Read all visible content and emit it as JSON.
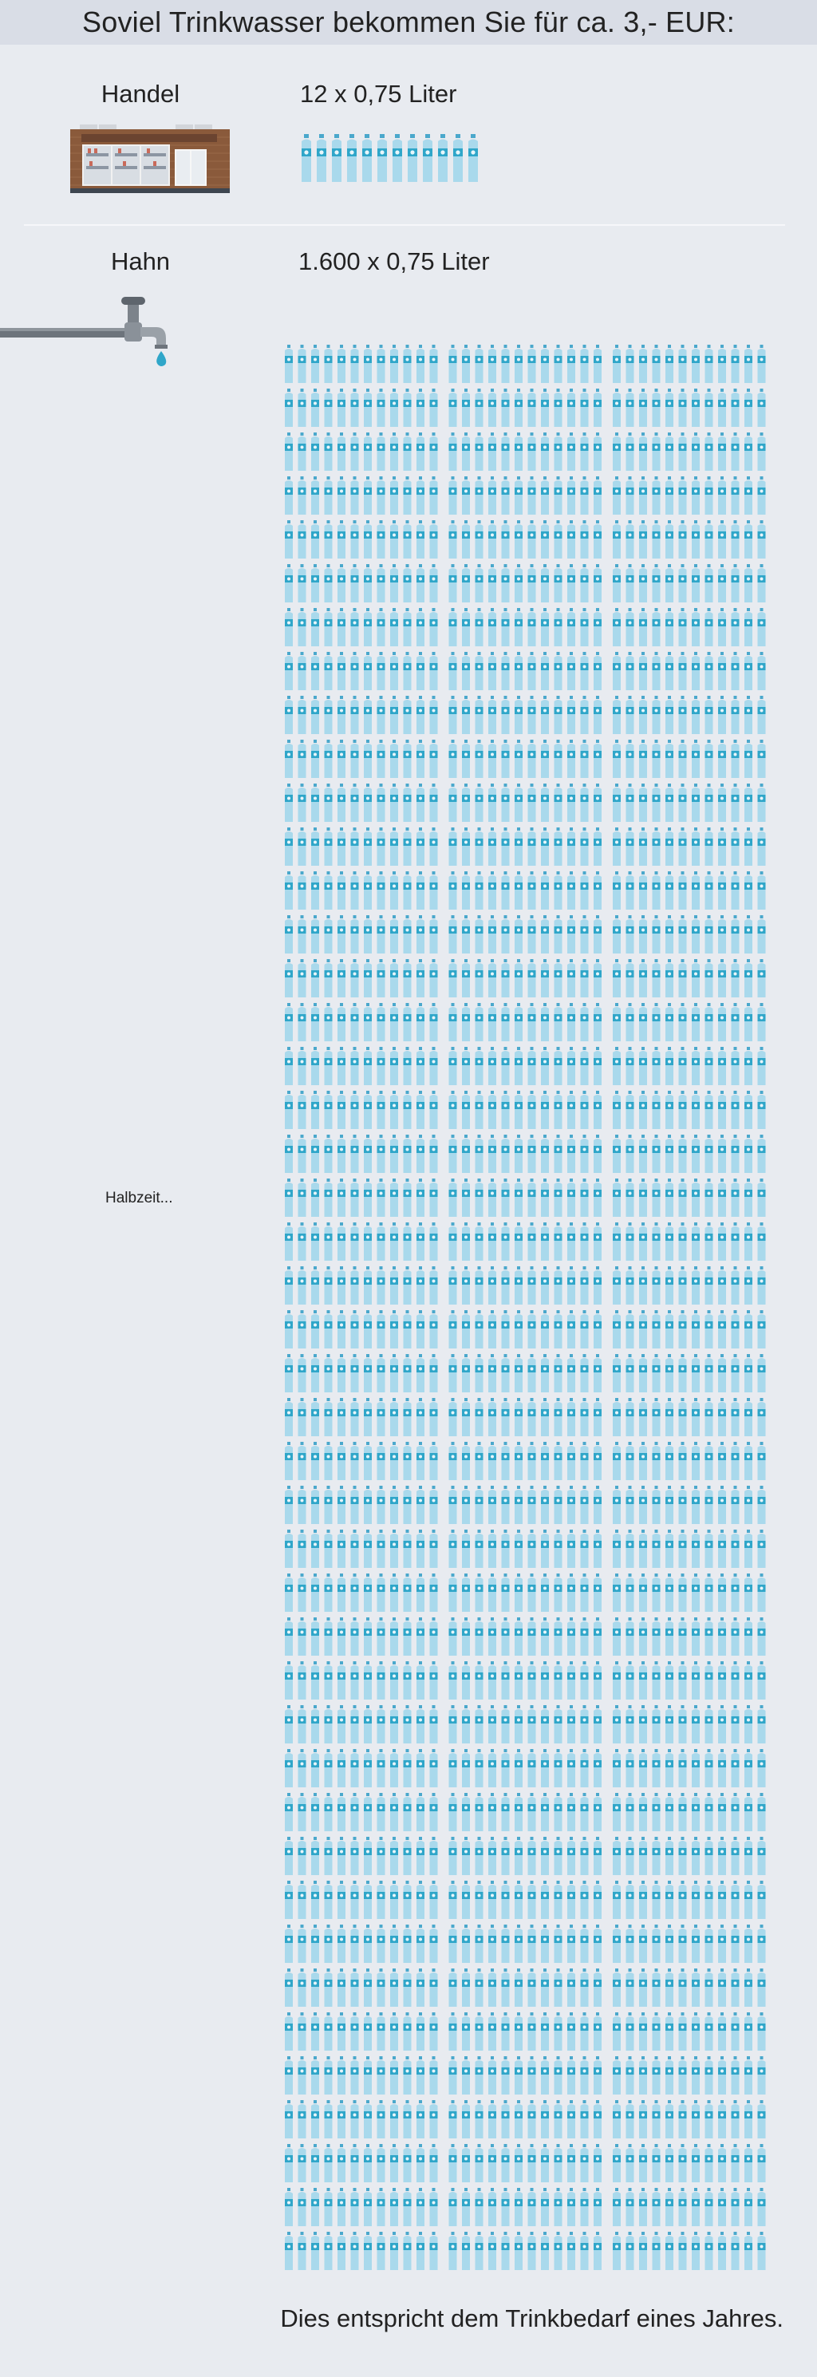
{
  "header": {
    "title": "Soviel Trinkwasser bekommen Sie für ca. 3,- EUR:"
  },
  "handel": {
    "label": "Handel",
    "quantity": "12 x 0,75 Liter",
    "bottle_count": 12,
    "icon": "store-icon"
  },
  "hahn": {
    "label": "Hahn",
    "quantity": "1.600 x 0,75 Liter",
    "bottle_count": 1600,
    "icon": "faucet-icon",
    "marker": "Halbzeit..."
  },
  "footer": {
    "text": "Dies entspricht dem Trinkbedarf eines Jahres."
  },
  "colors": {
    "background": "#e8ebf0",
    "header_band": "#d9dde6",
    "bottle_body": "#a9d9ec",
    "bottle_label": "#2fa6c9",
    "bottle_cap": "#4aa8cc"
  }
}
